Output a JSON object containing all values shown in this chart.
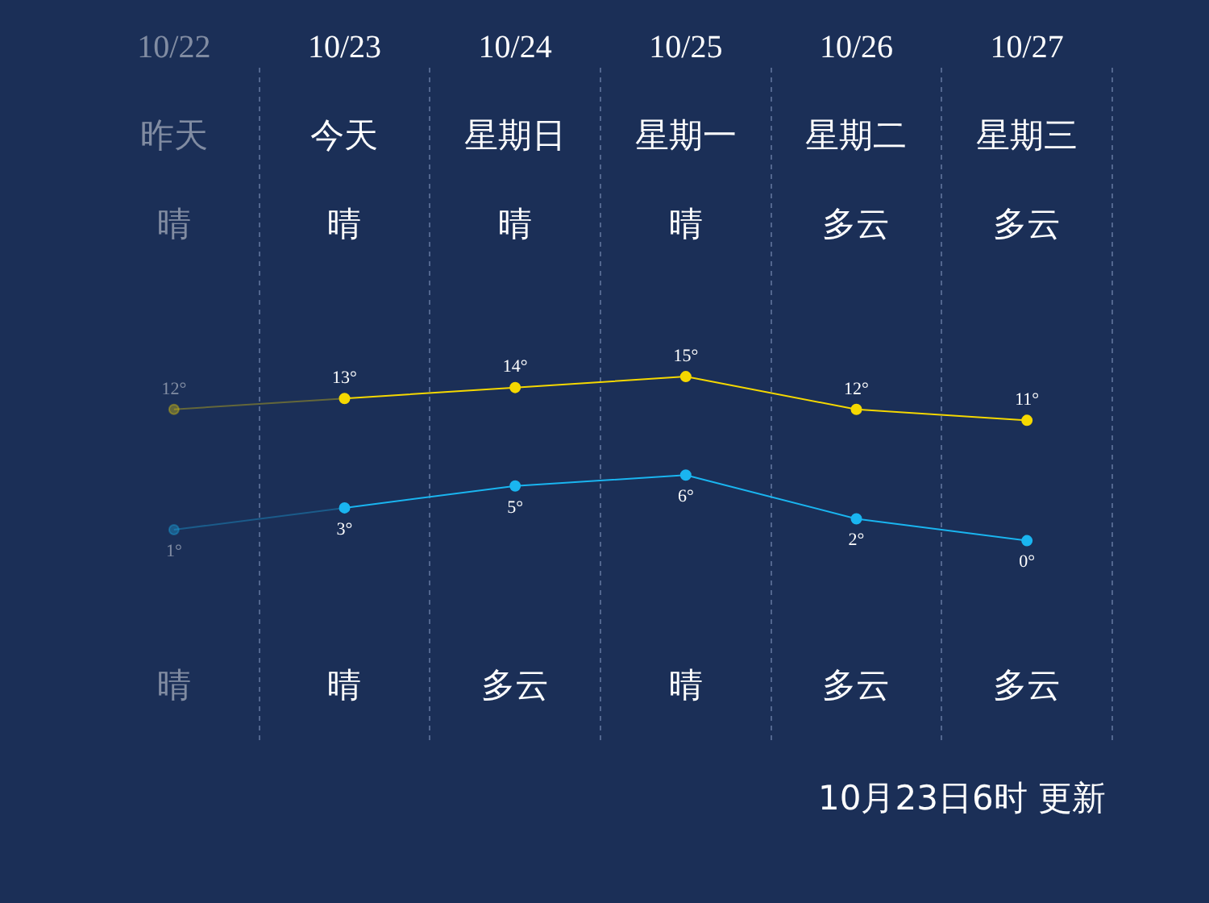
{
  "chart_data": {
    "type": "line",
    "categories": [
      "10/22",
      "10/23",
      "10/24",
      "10/25",
      "10/26",
      "10/27"
    ],
    "series": [
      {
        "color": "#f5d800",
        "values": [
          12,
          13,
          14,
          15,
          12,
          11
        ],
        "value_labels": [
          "12°",
          "13°",
          "14°",
          "15°",
          "12°",
          "11°"
        ]
      },
      {
        "color": "#1ab5f0",
        "values": [
          1,
          3,
          5,
          6,
          2,
          0
        ],
        "value_labels": [
          "1°",
          "3°",
          "5°",
          "6°",
          "2°",
          "0°"
        ]
      }
    ],
    "annotations": [
      "昨天",
      "今天",
      "星期日",
      "星期一",
      "星期二",
      "星期三",
      "晴",
      "晴",
      "晴",
      "晴",
      "多云",
      "多云",
      "晴",
      "晴",
      "多云",
      "晴",
      "多云",
      "多云",
      "10月23日6时 更新"
    ],
    "grid": "x",
    "legend": false,
    "marker": "circle",
    "line_style": "solid"
  }
}
